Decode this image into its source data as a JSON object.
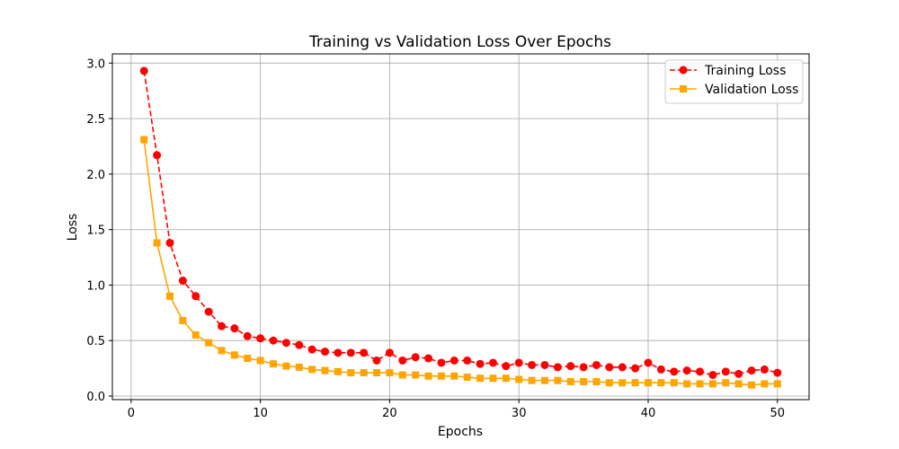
{
  "chart_data": {
    "type": "line",
    "title": "Training vs Validation Loss Over Epochs",
    "xlabel": "Epochs",
    "ylabel": "Loss",
    "xlim": [
      -1.45,
      52.45
    ],
    "ylim": [
      -0.032,
      3.083
    ],
    "xticks": [
      0,
      10,
      20,
      30,
      40,
      50
    ],
    "yticks": [
      0.0,
      0.5,
      1.0,
      1.5,
      2.0,
      2.5,
      3.0
    ],
    "xtick_labels": [
      "0",
      "10",
      "20",
      "30",
      "40",
      "50"
    ],
    "ytick_labels": [
      "0.0",
      "0.5",
      "1.0",
      "1.5",
      "2.0",
      "2.5",
      "3.0"
    ],
    "grid": true,
    "legend_position": "top-right",
    "x": [
      1,
      2,
      3,
      4,
      5,
      6,
      7,
      8,
      9,
      10,
      11,
      12,
      13,
      14,
      15,
      16,
      17,
      18,
      19,
      20,
      21,
      22,
      23,
      24,
      25,
      26,
      27,
      28,
      29,
      30,
      31,
      32,
      33,
      34,
      35,
      36,
      37,
      38,
      39,
      40,
      41,
      42,
      43,
      44,
      45,
      46,
      47,
      48,
      49,
      50
    ],
    "series": [
      {
        "name": "Training Loss",
        "color": "#ff0000",
        "line_style": "dashed",
        "marker": "circle",
        "values": [
          2.93,
          2.17,
          1.38,
          1.04,
          0.9,
          0.76,
          0.63,
          0.61,
          0.54,
          0.52,
          0.5,
          0.48,
          0.46,
          0.42,
          0.4,
          0.39,
          0.39,
          0.39,
          0.32,
          0.39,
          0.32,
          0.35,
          0.34,
          0.3,
          0.32,
          0.32,
          0.29,
          0.3,
          0.27,
          0.3,
          0.28,
          0.28,
          0.26,
          0.27,
          0.26,
          0.28,
          0.26,
          0.26,
          0.25,
          0.3,
          0.24,
          0.22,
          0.23,
          0.22,
          0.19,
          0.22,
          0.2,
          0.23,
          0.24,
          0.21
        ]
      },
      {
        "name": "Validation Loss",
        "color": "#ffa500",
        "line_style": "solid",
        "marker": "square",
        "values": [
          2.31,
          1.38,
          0.9,
          0.68,
          0.55,
          0.48,
          0.41,
          0.37,
          0.34,
          0.32,
          0.29,
          0.27,
          0.26,
          0.24,
          0.23,
          0.22,
          0.21,
          0.21,
          0.21,
          0.21,
          0.19,
          0.19,
          0.18,
          0.18,
          0.18,
          0.17,
          0.16,
          0.16,
          0.16,
          0.15,
          0.14,
          0.14,
          0.14,
          0.13,
          0.13,
          0.13,
          0.12,
          0.12,
          0.12,
          0.12,
          0.12,
          0.12,
          0.11,
          0.11,
          0.11,
          0.12,
          0.11,
          0.1,
          0.11,
          0.11
        ]
      }
    ]
  }
}
